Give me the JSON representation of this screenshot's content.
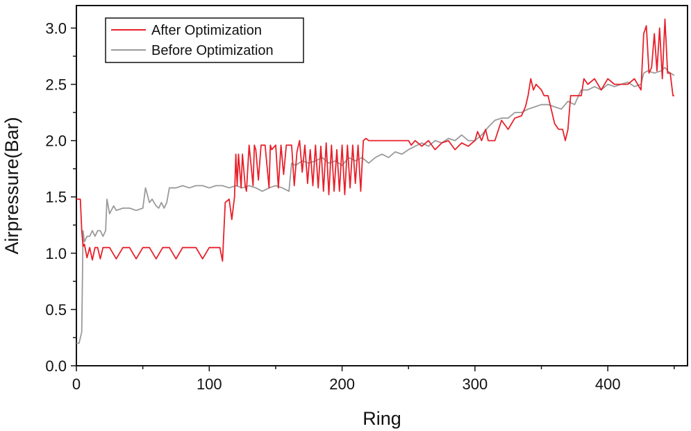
{
  "chart_data": {
    "type": "line",
    "title": "",
    "xlabel": "Ring",
    "ylabel": "Airpressure(Bar)",
    "xlim": [
      0,
      460
    ],
    "ylim": [
      0.0,
      3.2
    ],
    "xticks": [
      0,
      100,
      200,
      300,
      400
    ],
    "xtick_labels": [
      "0",
      "100",
      "200",
      "300",
      "400"
    ],
    "yticks": [
      0.0,
      0.5,
      1.0,
      1.5,
      2.0,
      2.5,
      3.0
    ],
    "ytick_labels": [
      "0.0",
      "0.5",
      "1.0",
      "1.5",
      "2.0",
      "2.5",
      "3.0"
    ],
    "grid": false,
    "legend_position": "top-left",
    "series": [
      {
        "name": "After Optimization",
        "color": "#e8202a",
        "x": [
          0,
          3,
          4,
          5,
          6,
          8,
          10,
          12,
          14,
          16,
          18,
          20,
          22,
          25,
          30,
          35,
          40,
          45,
          50,
          55,
          60,
          65,
          70,
          75,
          80,
          85,
          90,
          95,
          100,
          105,
          108,
          110,
          112,
          115,
          117,
          119,
          120,
          121,
          122,
          124,
          125,
          127,
          128,
          130,
          133,
          134,
          135,
          137,
          139,
          142,
          145,
          146,
          147,
          150,
          152,
          154,
          156,
          158,
          160,
          162,
          164,
          166,
          168,
          170,
          172,
          174,
          176,
          178,
          180,
          182,
          184,
          186,
          188,
          190,
          192,
          194,
          196,
          198,
          200,
          202,
          204,
          206,
          208,
          210,
          212,
          214,
          216,
          218,
          220,
          230,
          240,
          250,
          252,
          255,
          260,
          265,
          270,
          275,
          280,
          285,
          290,
          295,
          300,
          302,
          305,
          308,
          310,
          315,
          320,
          325,
          330,
          335,
          338,
          340,
          342,
          344,
          346,
          350,
          352,
          355,
          360,
          363,
          366,
          368,
          370,
          372,
          375,
          378,
          380,
          382,
          385,
          390,
          395,
          400,
          405,
          410,
          415,
          420,
          425,
          427,
          429,
          431,
          433,
          435,
          437,
          439,
          441,
          443,
          445,
          447,
          449,
          450
        ],
        "values": [
          1.48,
          1.48,
          1.2,
          1.06,
          1.08,
          0.96,
          1.05,
          0.94,
          1.05,
          1.05,
          0.95,
          1.05,
          1.05,
          1.05,
          0.95,
          1.05,
          1.05,
          0.95,
          1.05,
          1.05,
          0.95,
          1.05,
          1.05,
          0.95,
          1.05,
          1.05,
          1.05,
          0.95,
          1.05,
          1.05,
          1.05,
          0.93,
          1.45,
          1.48,
          1.3,
          1.5,
          1.88,
          1.6,
          1.88,
          1.58,
          1.88,
          1.6,
          1.55,
          1.96,
          1.6,
          1.96,
          1.92,
          1.65,
          1.96,
          1.96,
          1.58,
          1.96,
          1.92,
          1.96,
          1.58,
          1.96,
          1.7,
          1.96,
          1.96,
          1.96,
          1.6,
          1.9,
          2.0,
          1.72,
          1.96,
          1.62,
          1.92,
          1.6,
          1.96,
          1.58,
          1.95,
          1.55,
          1.98,
          1.52,
          1.96,
          1.55,
          1.92,
          1.55,
          1.96,
          1.52,
          1.96,
          1.58,
          1.96,
          1.62,
          1.96,
          1.55,
          2.0,
          2.02,
          2.0,
          2.0,
          2.0,
          2.0,
          1.96,
          2.0,
          1.95,
          2.0,
          1.92,
          1.98,
          2.0,
          1.92,
          1.98,
          1.95,
          2.0,
          2.08,
          2.0,
          2.1,
          2.0,
          2.0,
          2.18,
          2.1,
          2.2,
          2.22,
          2.3,
          2.4,
          2.55,
          2.45,
          2.5,
          2.45,
          2.4,
          2.4,
          2.15,
          2.1,
          2.1,
          2.0,
          2.1,
          2.4,
          2.4,
          2.4,
          2.4,
          2.55,
          2.5,
          2.55,
          2.45,
          2.55,
          2.5,
          2.5,
          2.5,
          2.55,
          2.45,
          2.95,
          3.02,
          2.6,
          2.65,
          2.95,
          2.62,
          3.0,
          2.55,
          3.08,
          2.6,
          2.6,
          2.4,
          2.4
        ],
        "values_note": "values in bar, read off plot"
      },
      {
        "name": "Before Optimization",
        "color": "#9a9a9a",
        "x": [
          0,
          2,
          4,
          5,
          6,
          8,
          10,
          12,
          14,
          16,
          18,
          20,
          22,
          23,
          25,
          28,
          30,
          35,
          40,
          45,
          50,
          52,
          55,
          57,
          60,
          62,
          64,
          66,
          68,
          70,
          75,
          80,
          85,
          90,
          95,
          100,
          105,
          110,
          115,
          120,
          125,
          130,
          135,
          140,
          145,
          150,
          155,
          160,
          162,
          165,
          170,
          175,
          180,
          185,
          190,
          195,
          200,
          205,
          210,
          215,
          220,
          225,
          230,
          235,
          240,
          245,
          250,
          255,
          260,
          265,
          270,
          275,
          280,
          285,
          290,
          295,
          300,
          305,
          310,
          315,
          320,
          325,
          330,
          335,
          340,
          345,
          350,
          355,
          360,
          365,
          370,
          375,
          378,
          380,
          385,
          390,
          395,
          400,
          405,
          410,
          415,
          420,
          425,
          427,
          430,
          435,
          440,
          443,
          445,
          447,
          450
        ],
        "values": [
          0.2,
          0.2,
          0.3,
          1.2,
          1.1,
          1.15,
          1.15,
          1.2,
          1.15,
          1.2,
          1.2,
          1.15,
          1.2,
          1.48,
          1.35,
          1.42,
          1.38,
          1.4,
          1.4,
          1.38,
          1.4,
          1.58,
          1.45,
          1.48,
          1.42,
          1.4,
          1.45,
          1.4,
          1.45,
          1.58,
          1.58,
          1.6,
          1.58,
          1.6,
          1.6,
          1.58,
          1.6,
          1.6,
          1.58,
          1.6,
          1.58,
          1.6,
          1.58,
          1.55,
          1.58,
          1.6,
          1.58,
          1.55,
          1.8,
          1.78,
          1.82,
          1.8,
          1.82,
          1.85,
          1.8,
          1.82,
          1.78,
          1.85,
          1.82,
          1.85,
          1.8,
          1.85,
          1.88,
          1.85,
          1.9,
          1.88,
          1.92,
          1.95,
          1.98,
          1.95,
          2.0,
          1.98,
          2.02,
          2.0,
          2.05,
          2.0,
          2.0,
          2.05,
          2.12,
          2.18,
          2.2,
          2.2,
          2.25,
          2.25,
          2.28,
          2.3,
          2.32,
          2.32,
          2.3,
          2.28,
          2.35,
          2.32,
          2.4,
          2.45,
          2.45,
          2.48,
          2.45,
          2.5,
          2.48,
          2.5,
          2.52,
          2.48,
          2.5,
          2.6,
          2.62,
          2.6,
          2.62,
          2.65,
          2.62,
          2.6,
          2.58
        ]
      }
    ]
  }
}
